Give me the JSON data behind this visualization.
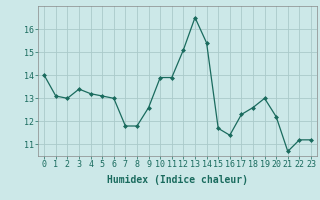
{
  "x": [
    0,
    1,
    2,
    3,
    4,
    5,
    6,
    7,
    8,
    9,
    10,
    11,
    12,
    13,
    14,
    15,
    16,
    17,
    18,
    19,
    20,
    21,
    22,
    23
  ],
  "y": [
    14.0,
    13.1,
    13.0,
    13.4,
    13.2,
    13.1,
    13.0,
    11.8,
    11.8,
    12.6,
    13.9,
    13.9,
    15.1,
    16.5,
    15.4,
    11.7,
    11.4,
    12.3,
    12.6,
    13.0,
    12.2,
    10.7,
    11.2,
    11.2
  ],
  "xlabel": "Humidex (Indice chaleur)",
  "ylim": [
    10.5,
    17.0
  ],
  "yticks": [
    11,
    12,
    13,
    14,
    15,
    16
  ],
  "xticks": [
    0,
    1,
    2,
    3,
    4,
    5,
    6,
    7,
    8,
    9,
    10,
    11,
    12,
    13,
    14,
    15,
    16,
    17,
    18,
    19,
    20,
    21,
    22,
    23
  ],
  "line_color": "#1a6b5e",
  "marker": "D",
  "marker_size": 2,
  "bg_color": "#cce8e8",
  "grid_color": "#aacaca",
  "tick_font_size": 6,
  "xlabel_font_size": 7
}
